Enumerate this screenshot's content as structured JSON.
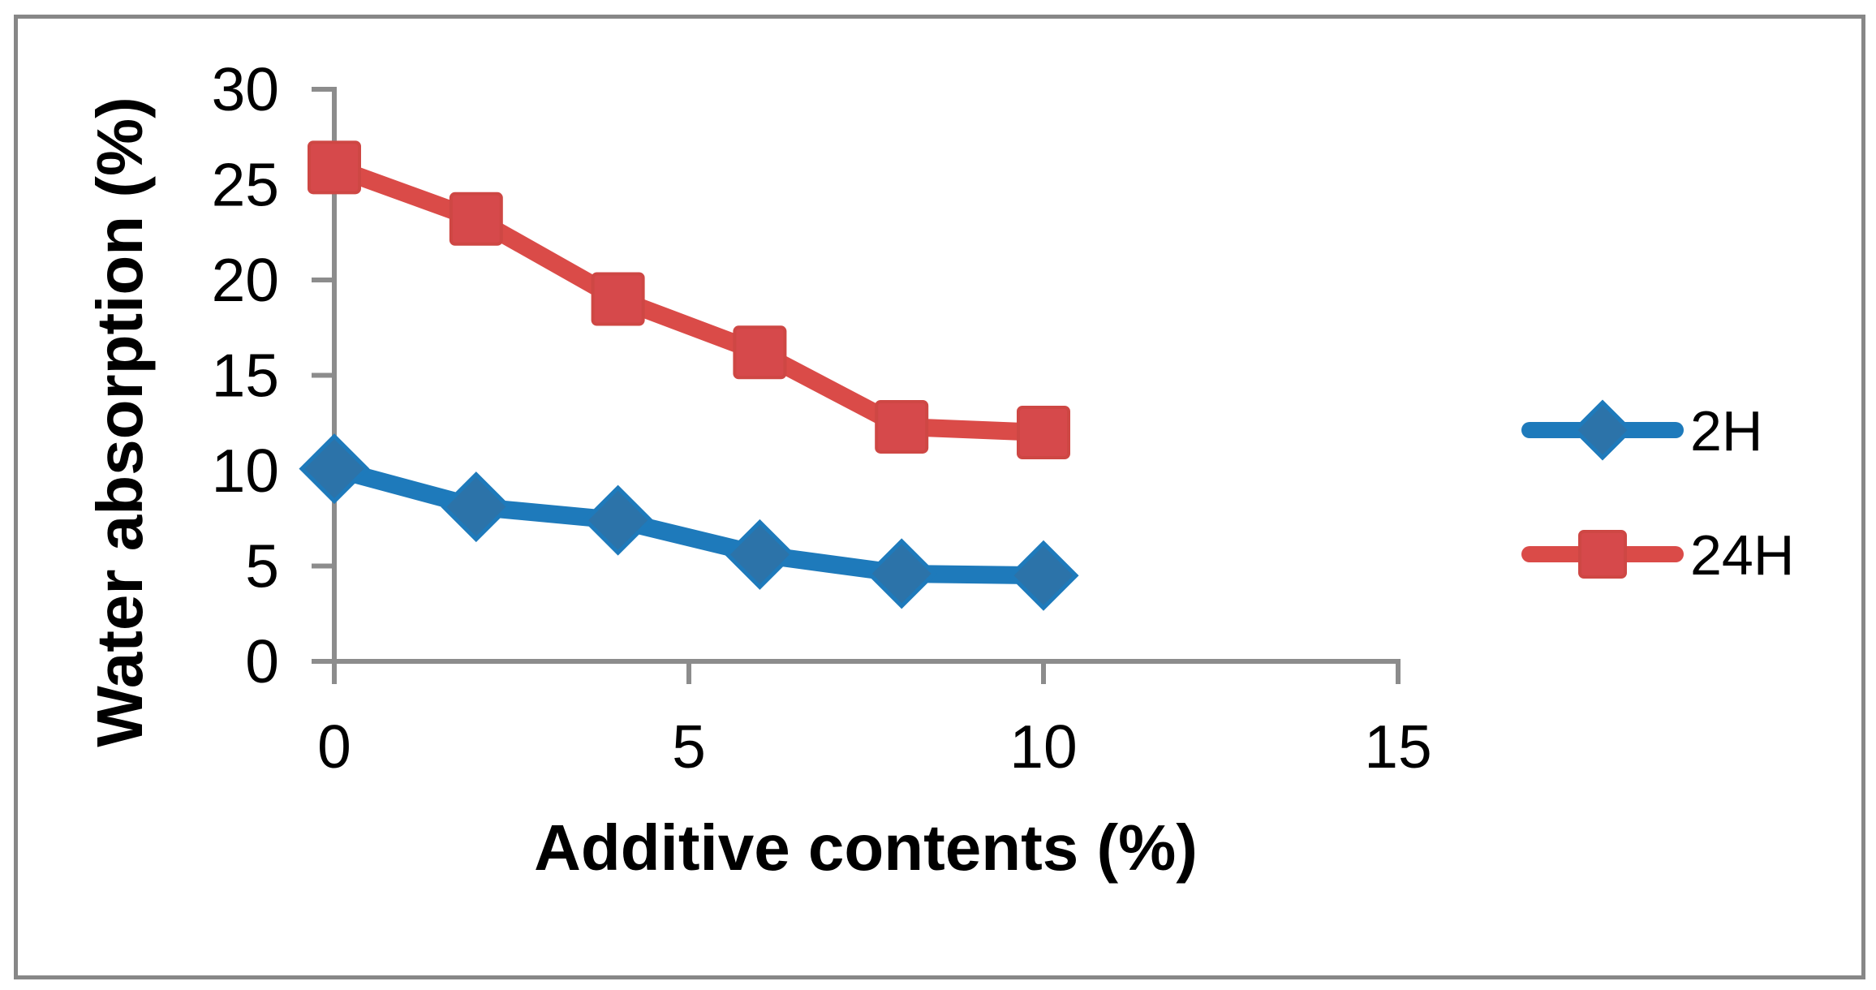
{
  "chart_data": {
    "type": "line",
    "x": [
      0,
      2,
      4,
      6,
      8,
      10
    ],
    "series": [
      {
        "name": "2H",
        "marker": "diamond",
        "line_color": "#1E7ABB",
        "marker_fill": "#2C73A9",
        "marker_stroke": "#1E7ABB",
        "values": [
          10.1,
          8.1,
          7.4,
          5.6,
          4.6,
          4.5
        ]
      },
      {
        "name": "24H",
        "marker": "square",
        "line_color": "#DA4B48",
        "marker_fill": "#D6494B",
        "marker_stroke": "#CE4744",
        "values": [
          25.9,
          23.2,
          19.0,
          16.2,
          12.3,
          12.0
        ]
      }
    ],
    "xlabel": "Additive contents (%)",
    "ylabel": "Water absorption (%)",
    "xlim": [
      0,
      15
    ],
    "ylim": [
      0,
      30
    ],
    "x_ticks": [
      0,
      5,
      10,
      15
    ],
    "y_ticks": [
      0,
      5,
      10,
      15,
      20,
      25,
      30
    ],
    "grid": false,
    "legend_position": "right",
    "axis_color": "#8C8C8C",
    "text_color": "#000000",
    "frame_color": "#878787"
  }
}
